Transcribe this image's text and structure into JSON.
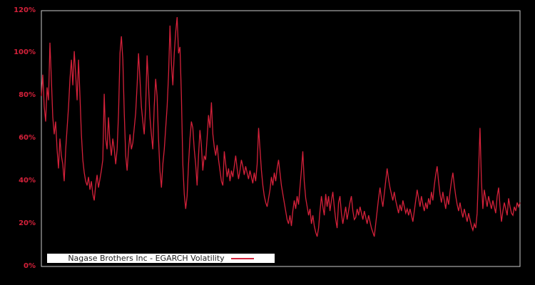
{
  "colors": {
    "background": "#000000",
    "line": "#d4213a",
    "tick_label": "#d4213a",
    "plot_border": "#cbcbcb",
    "legend_background": "#ffffff",
    "legend_text": "#1a1a1a"
  },
  "legend": {
    "label": "Nagase Brothers Inc - EGARCH Volatility"
  },
  "axis": {
    "y_labels": [
      "120%",
      "100%",
      "80%",
      "60%",
      "40%",
      "20%",
      "0%"
    ],
    "x_tick_labels": []
  },
  "chart_data": {
    "type": "line",
    "title": "",
    "xlabel": "",
    "ylabel": "",
    "y_unit": "%",
    "ylim": [
      0,
      120
    ],
    "y_ticks": [
      0,
      20,
      40,
      60,
      80,
      100,
      120
    ],
    "grid": false,
    "legend_position": "bottom-left",
    "series": [
      {
        "name": "Nagase Brothers Inc - EGARCH Volatility",
        "color": "#d4213a",
        "values": [
          80,
          90,
          75,
          68,
          84,
          78,
          105,
          88,
          70,
          62,
          68,
          55,
          46,
          60,
          52,
          48,
          40,
          55,
          65,
          75,
          88,
          97,
          85,
          101,
          90,
          78,
          97,
          80,
          62,
          50,
          44,
          40,
          38,
          42,
          36,
          40,
          34,
          31,
          38,
          43,
          37,
          41,
          45,
          50,
          81,
          60,
          55,
          70,
          58,
          52,
          60,
          55,
          48,
          55,
          72,
          100,
          108,
          97,
          72,
          52,
          45,
          55,
          62,
          55,
          58,
          65,
          72,
          85,
          100,
          88,
          75,
          68,
          62,
          75,
          99,
          85,
          70,
          62,
          55,
          75,
          88,
          80,
          60,
          45,
          37,
          48,
          55,
          65,
          75,
          90,
          113,
          95,
          85,
          100,
          110,
          117,
          100,
          103,
          80,
          48,
          34,
          27,
          33,
          48,
          60,
          68,
          65,
          55,
          48,
          38,
          52,
          64,
          57,
          45,
          52,
          50,
          60,
          71,
          65,
          77,
          62,
          56,
          52,
          57,
          50,
          45,
          40,
          38,
          54,
          48,
          42,
          46,
          40,
          45,
          42,
          47,
          52,
          46,
          41,
          45,
          50,
          47,
          43,
          47,
          44,
          41,
          45,
          42,
          39,
          44,
          40,
          48,
          65,
          55,
          45,
          38,
          33,
          30,
          28,
          32,
          36,
          42,
          38,
          44,
          40,
          46,
          50,
          44,
          38,
          34,
          30,
          26,
          22,
          20,
          24,
          19,
          26,
          31,
          27,
          33,
          29,
          37,
          45,
          54,
          40,
          32,
          28,
          24,
          27,
          20,
          24,
          19,
          16,
          14,
          18,
          26,
          33,
          28,
          24,
          34,
          28,
          33,
          26,
          31,
          35,
          28,
          22,
          18,
          30,
          33,
          25,
          20,
          24,
          28,
          22,
          26,
          30,
          33,
          26,
          22,
          23,
          27,
          24,
          28,
          25,
          22,
          26,
          23,
          20,
          24,
          21,
          18,
          16,
          14,
          20,
          26,
          32,
          37,
          32,
          28,
          34,
          40,
          46,
          41,
          37,
          34,
          31,
          35,
          31,
          28,
          25,
          29,
          26,
          31,
          28,
          25,
          27,
          24,
          27,
          24,
          21,
          26,
          31,
          36,
          32,
          28,
          33,
          29,
          26,
          30,
          27,
          32,
          29,
          35,
          31,
          38,
          43,
          47,
          40,
          34,
          30,
          35,
          31,
          27,
          33,
          29,
          35,
          40,
          44,
          38,
          33,
          29,
          26,
          30,
          26,
          23,
          27,
          24,
          21,
          25,
          22,
          19,
          17,
          20,
          18,
          25,
          45,
          65,
          40,
          27,
          36,
          32,
          28,
          33,
          30,
          27,
          31,
          28,
          25,
          33,
          37,
          28,
          21,
          26,
          30,
          27,
          24,
          32,
          28,
          25,
          24,
          28,
          26,
          30,
          28,
          30
        ]
      }
    ]
  }
}
